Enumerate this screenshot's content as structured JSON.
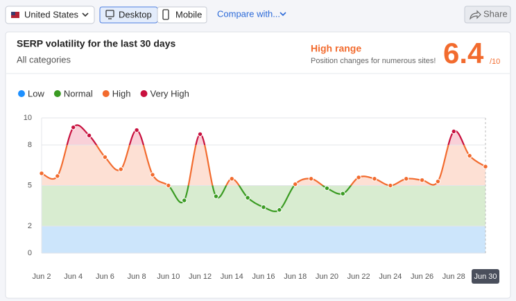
{
  "toolbar": {
    "country": "United States",
    "desktop": "Desktop",
    "mobile": "Mobile",
    "compare": "Compare with...",
    "share": "Share"
  },
  "header": {
    "title": "SERP volatility for the last 30 days",
    "subtitle": "All categories",
    "range_label": "High range",
    "range_note": "Position changes for numerous sites!",
    "score": 6.4,
    "score_max": "/10"
  },
  "chart_data": {
    "type": "line",
    "bands": [
      {
        "name": "Low",
        "color": "#1e90ff",
        "fill": "#cce5fb",
        "range": [
          0,
          2
        ],
        "background": true
      },
      {
        "name": "Normal",
        "color": "#3a9b22",
        "fill": "#d8ecd0",
        "range": [
          2,
          5
        ],
        "background": true
      },
      {
        "name": "High",
        "color": "#f26b2e",
        "fill": "#fde0d4",
        "range": [
          5,
          8
        ],
        "background": false
      },
      {
        "name": "Very High",
        "color": "#c8103e",
        "fill": "#f9d0d8",
        "range": [
          8,
          10
        ],
        "background": false
      }
    ],
    "categories": [
      "Jun 2",
      null,
      "Jun 4",
      null,
      "Jun 6",
      null,
      "Jun 8",
      null,
      "Jun 10",
      null,
      "Jun 12",
      null,
      "Jun 14",
      null,
      "Jun 16",
      null,
      "Jun 18",
      null,
      "Jun 20",
      null,
      "Jun 22",
      null,
      "Jun 24",
      null,
      "Jun 26",
      null,
      "Jun 28",
      null,
      "Jun 30"
    ],
    "values": [
      5.9,
      5.7,
      9.3,
      8.7,
      7.1,
      6.2,
      9.1,
      5.8,
      5.0,
      3.9,
      8.8,
      4.2,
      5.5,
      4.1,
      3.4,
      3.2,
      5.1,
      5.5,
      4.8,
      4.4,
      5.6,
      5.5,
      5.0,
      5.5,
      5.4,
      5.3,
      9.0,
      7.2,
      6.4
    ],
    "ylim": [
      0,
      10
    ],
    "yticks": [
      0,
      2,
      5,
      8,
      10
    ],
    "grid": true
  }
}
